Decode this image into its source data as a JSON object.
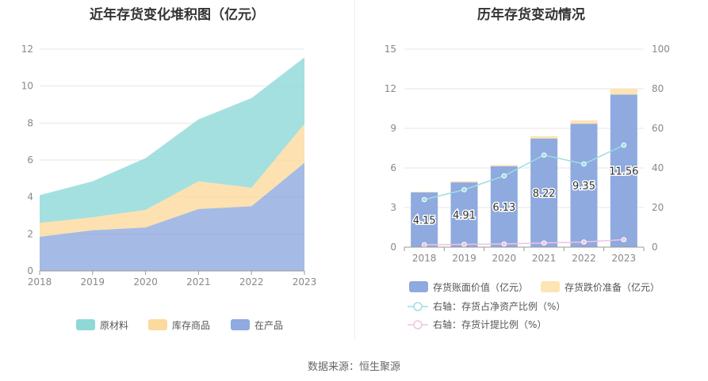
{
  "chart_data": [
    {
      "type": "area",
      "stacked": true,
      "title": "近年存货变化堆积图（亿元）",
      "categories": [
        "2018",
        "2019",
        "2020",
        "2021",
        "2022",
        "2023"
      ],
      "ylim": [
        0,
        12
      ],
      "yticks": [
        0,
        2,
        4,
        6,
        8,
        10,
        12
      ],
      "legend_position": "bottom",
      "series": [
        {
          "name": "在产品",
          "color": "#8eaadf",
          "values": [
            1.85,
            2.2,
            2.35,
            3.35,
            3.5,
            5.85
          ]
        },
        {
          "name": "库存商品",
          "color": "#fcd99c",
          "values": [
            0.75,
            0.7,
            0.95,
            1.5,
            1.0,
            2.1
          ]
        },
        {
          "name": "原材料",
          "color": "#8ed8d8",
          "values": [
            1.5,
            1.95,
            2.8,
            3.35,
            4.85,
            3.6
          ]
        }
      ],
      "legend_order": [
        "原材料",
        "库存商品",
        "在产品"
      ]
    },
    {
      "type": "bar",
      "stacked": true,
      "title": "历年存货变动情况",
      "categories": [
        "2018",
        "2019",
        "2020",
        "2021",
        "2022",
        "2023"
      ],
      "ylim": [
        0,
        15
      ],
      "yticks": [
        0,
        3,
        6,
        9,
        12,
        15
      ],
      "y2lim": [
        0,
        100
      ],
      "y2ticks": [
        0,
        20,
        40,
        60,
        80,
        100
      ],
      "legend_position": "bottom",
      "series": [
        {
          "name": "存货账面价值（亿元）",
          "color": "#8eaadf",
          "values": [
            4.15,
            4.91,
            6.13,
            8.22,
            9.35,
            11.56
          ],
          "labels": [
            "4.15",
            "4.91",
            "6.13",
            "8.22",
            "9.35",
            "11.56"
          ]
        },
        {
          "name": "存货跌价准备（亿元）",
          "color": "#fde4b4",
          "values": [
            0.05,
            0.08,
            0.1,
            0.18,
            0.25,
            0.45
          ]
        }
      ],
      "line_series": [
        {
          "name": "右轴：存货占净资产比例（%）",
          "color": "#9fdede",
          "values": [
            24,
            29,
            36,
            46.5,
            42,
            51.5
          ]
        },
        {
          "name": "右轴：存货计提比例（%）",
          "color": "#f2c2e0",
          "values": [
            1.2,
            1.4,
            1.6,
            2.1,
            2.6,
            3.8
          ]
        }
      ]
    }
  ],
  "source": "数据来源：恒生聚源"
}
